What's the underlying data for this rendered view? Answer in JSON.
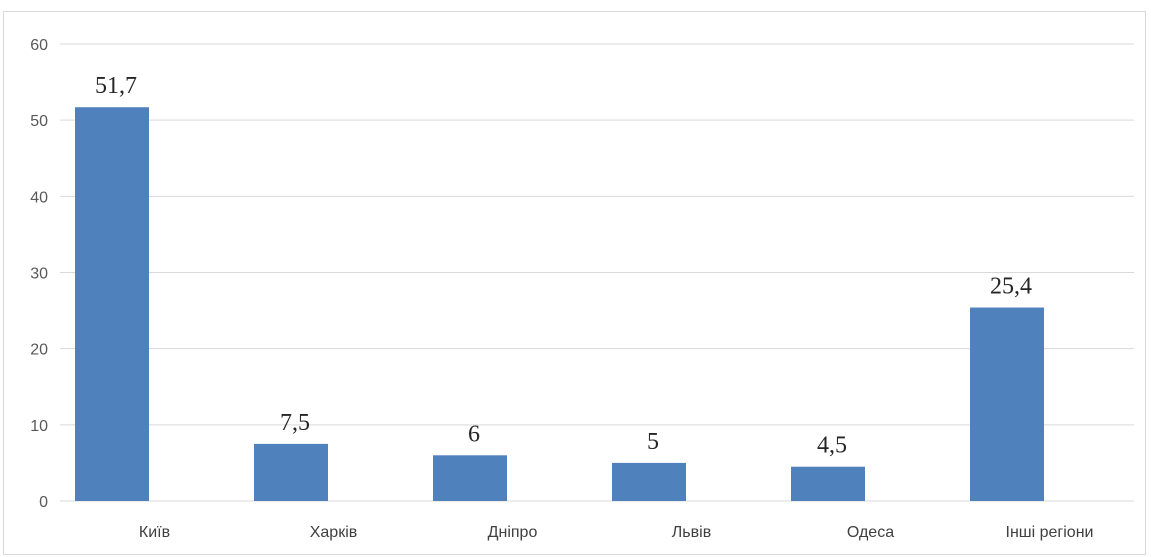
{
  "chart_data": {
    "type": "bar",
    "categories": [
      "Київ",
      "Харків",
      "Дніпро",
      "Львів",
      "Одеса",
      "Інші регіони"
    ],
    "values": [
      51.7,
      7.5,
      6,
      5,
      4.5,
      25.4
    ],
    "data_labels": [
      "51,7",
      "7,5",
      "6",
      "5",
      "4,5",
      "25,4"
    ],
    "yticks": [
      0,
      10,
      20,
      30,
      40,
      50,
      60
    ],
    "ylim": [
      0,
      60
    ],
    "grid": true,
    "legend": "none",
    "bar_color": "#4f81bd",
    "grid_color": "#d9d9d9"
  }
}
